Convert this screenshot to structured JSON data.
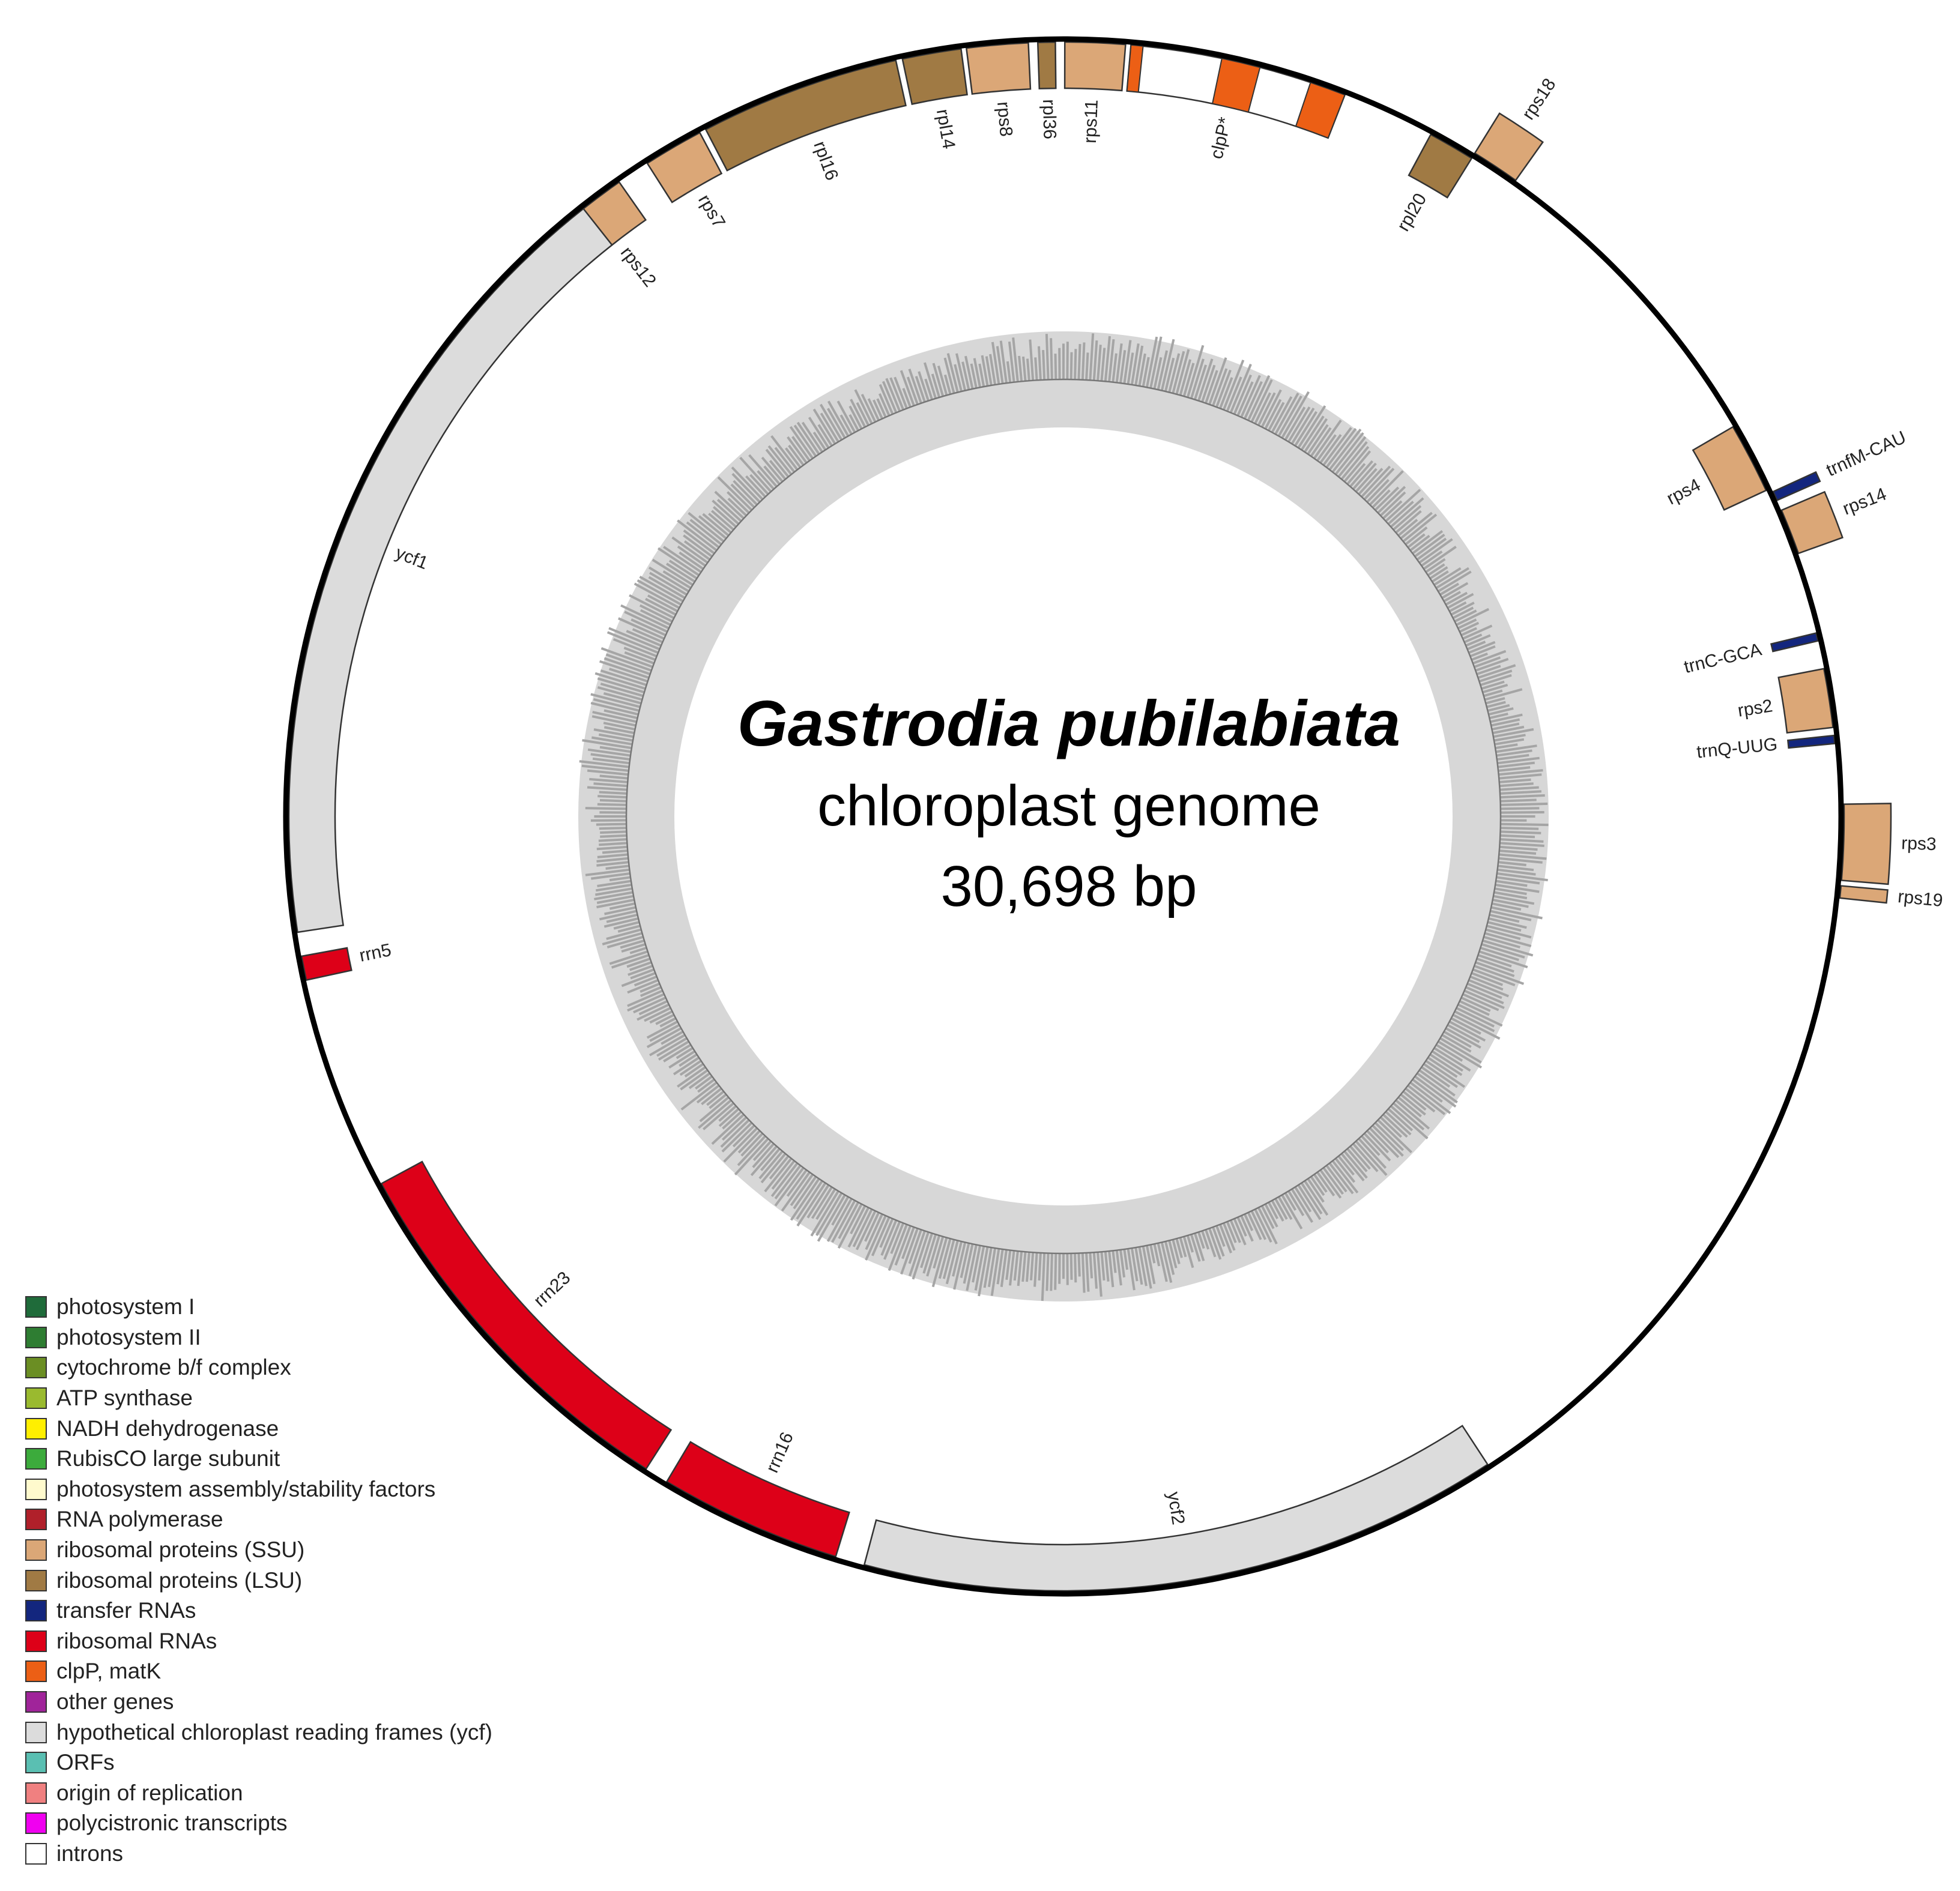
{
  "map": {
    "title_species": "Gastrodia pubilabiata",
    "title_type": "chloroplast genome",
    "title_size": "30,698 bp",
    "genome_length_bp": 30698
  },
  "legend": [
    {
      "label": "photosystem I",
      "color": "#1f6b3a"
    },
    {
      "label": "photosystem II",
      "color": "#2e7d32"
    },
    {
      "label": "cytochrome b/f complex",
      "color": "#6b8e23"
    },
    {
      "label": "ATP synthase",
      "color": "#9aba2f"
    },
    {
      "label": "NADH dehydrogenase",
      "color": "#ffef00"
    },
    {
      "label": "RubisCO large subunit",
      "color": "#3cab3c"
    },
    {
      "label": "photosystem assembly/stability factors",
      "color": "#fffacd"
    },
    {
      "label": "RNA polymerase",
      "color": "#b0202a"
    },
    {
      "label": "ribosomal proteins (SSU)",
      "color": "#dba777"
    },
    {
      "label": "ribosomal proteins (LSU)",
      "color": "#a07a44"
    },
    {
      "label": "transfer RNAs",
      "color": "#13267e"
    },
    {
      "label": "ribosomal RNAs",
      "color": "#dd0018"
    },
    {
      "label": "clpP, matK",
      "color": "#ec5f15"
    },
    {
      "label": "other genes",
      "color": "#a0249a"
    },
    {
      "label": "hypothetical chloroplast reading frames (ycf)",
      "color": "#dcdcdc"
    },
    {
      "label": "ORFs",
      "color": "#5abfb2"
    },
    {
      "label": "origin of replication",
      "color": "#f08080"
    },
    {
      "label": "polycistronic transcripts",
      "color": "#f000f0"
    },
    {
      "label": "introns",
      "color": "#ffffff"
    }
  ],
  "genes": [
    {
      "name": "rps12",
      "strand": "out",
      "start_deg": -40.6,
      "end_deg": -35.0,
      "color": "#dba777"
    },
    {
      "name": "rps7",
      "strand": "out",
      "start_deg": -32.5,
      "end_deg": -28.0,
      "color": "#dba777"
    },
    {
      "name": "rpl16",
      "strand": "out",
      "start_deg": -27.5,
      "end_deg": -12.5,
      "color": "#a07a44"
    },
    {
      "name": "rpl14",
      "strand": "out",
      "start_deg": -12.0,
      "end_deg": -7.6,
      "color": "#a07a44"
    },
    {
      "name": "rps8",
      "strand": "out",
      "start_deg": -7.2,
      "end_deg": -2.6,
      "color": "#dba777"
    },
    {
      "name": "rpl36",
      "strand": "out",
      "start_deg": -1.9,
      "end_deg": -0.6,
      "color": "#a07a44"
    },
    {
      "name": "rps11",
      "strand": "out",
      "start_deg": 0.1,
      "end_deg": 4.6,
      "color": "#dba777"
    },
    {
      "name": "clpP*",
      "strand": "out",
      "start_deg": 5.0,
      "end_deg": 21.3,
      "color": "#ec5f15",
      "exons": [
        [
          5.0,
          5.9
        ],
        [
          11.8,
          14.7
        ],
        [
          18.6,
          21.3
        ]
      ]
    },
    {
      "name": "rpl20",
      "strand": "out",
      "start_deg": 28.3,
      "end_deg": 31.8,
      "color": "#a07a44"
    },
    {
      "name": "rps18",
      "strand": "in",
      "start_deg": 31.8,
      "end_deg": 35.4,
      "color": "#dba777"
    },
    {
      "name": "rps4",
      "strand": "out",
      "start_deg": 59.8,
      "end_deg": 65.1,
      "color": "#dba777"
    },
    {
      "name": "trnfM-CAU",
      "strand": "in",
      "start_deg": 65.4,
      "end_deg": 66.1,
      "color": "#13267e"
    },
    {
      "name": "rps14",
      "strand": "in",
      "start_deg": 66.9,
      "end_deg": 70.3,
      "color": "#dba777"
    },
    {
      "name": "trnC-GCA",
      "strand": "out",
      "start_deg": 76.3,
      "end_deg": 76.9,
      "color": "#13267e"
    },
    {
      "name": "rps2",
      "strand": "out",
      "start_deg": 79.0,
      "end_deg": 83.4,
      "color": "#dba777"
    },
    {
      "name": "trnQ-UUG",
      "strand": "out",
      "start_deg": 84.0,
      "end_deg": 84.6,
      "color": "#13267e"
    },
    {
      "name": "rps3",
      "strand": "in",
      "start_deg": 89.1,
      "end_deg": 94.7,
      "color": "#dba777"
    },
    {
      "name": "rps19",
      "strand": "in",
      "start_deg": 95.1,
      "end_deg": 96.0,
      "color": "#dba777"
    },
    {
      "name": "ycf2",
      "strand": "out",
      "start_deg": 146.8,
      "end_deg": 194.9,
      "color": "#dcdcdc"
    },
    {
      "name": "rrn16",
      "strand": "out",
      "start_deg": 197.1,
      "end_deg": 210.8,
      "color": "#dd0018"
    },
    {
      "name": "rrn23",
      "strand": "out",
      "start_deg": 212.6,
      "end_deg": 241.7,
      "color": "#dd0018"
    },
    {
      "name": "rrn5",
      "strand": "out",
      "start_deg": 257.8,
      "end_deg": 259.6,
      "color": "#dd0018"
    },
    {
      "name": "ycf1",
      "strand": "out",
      "start_deg": 261.4,
      "end_deg": 321.7,
      "color": "#dcdcdc"
    }
  ]
}
